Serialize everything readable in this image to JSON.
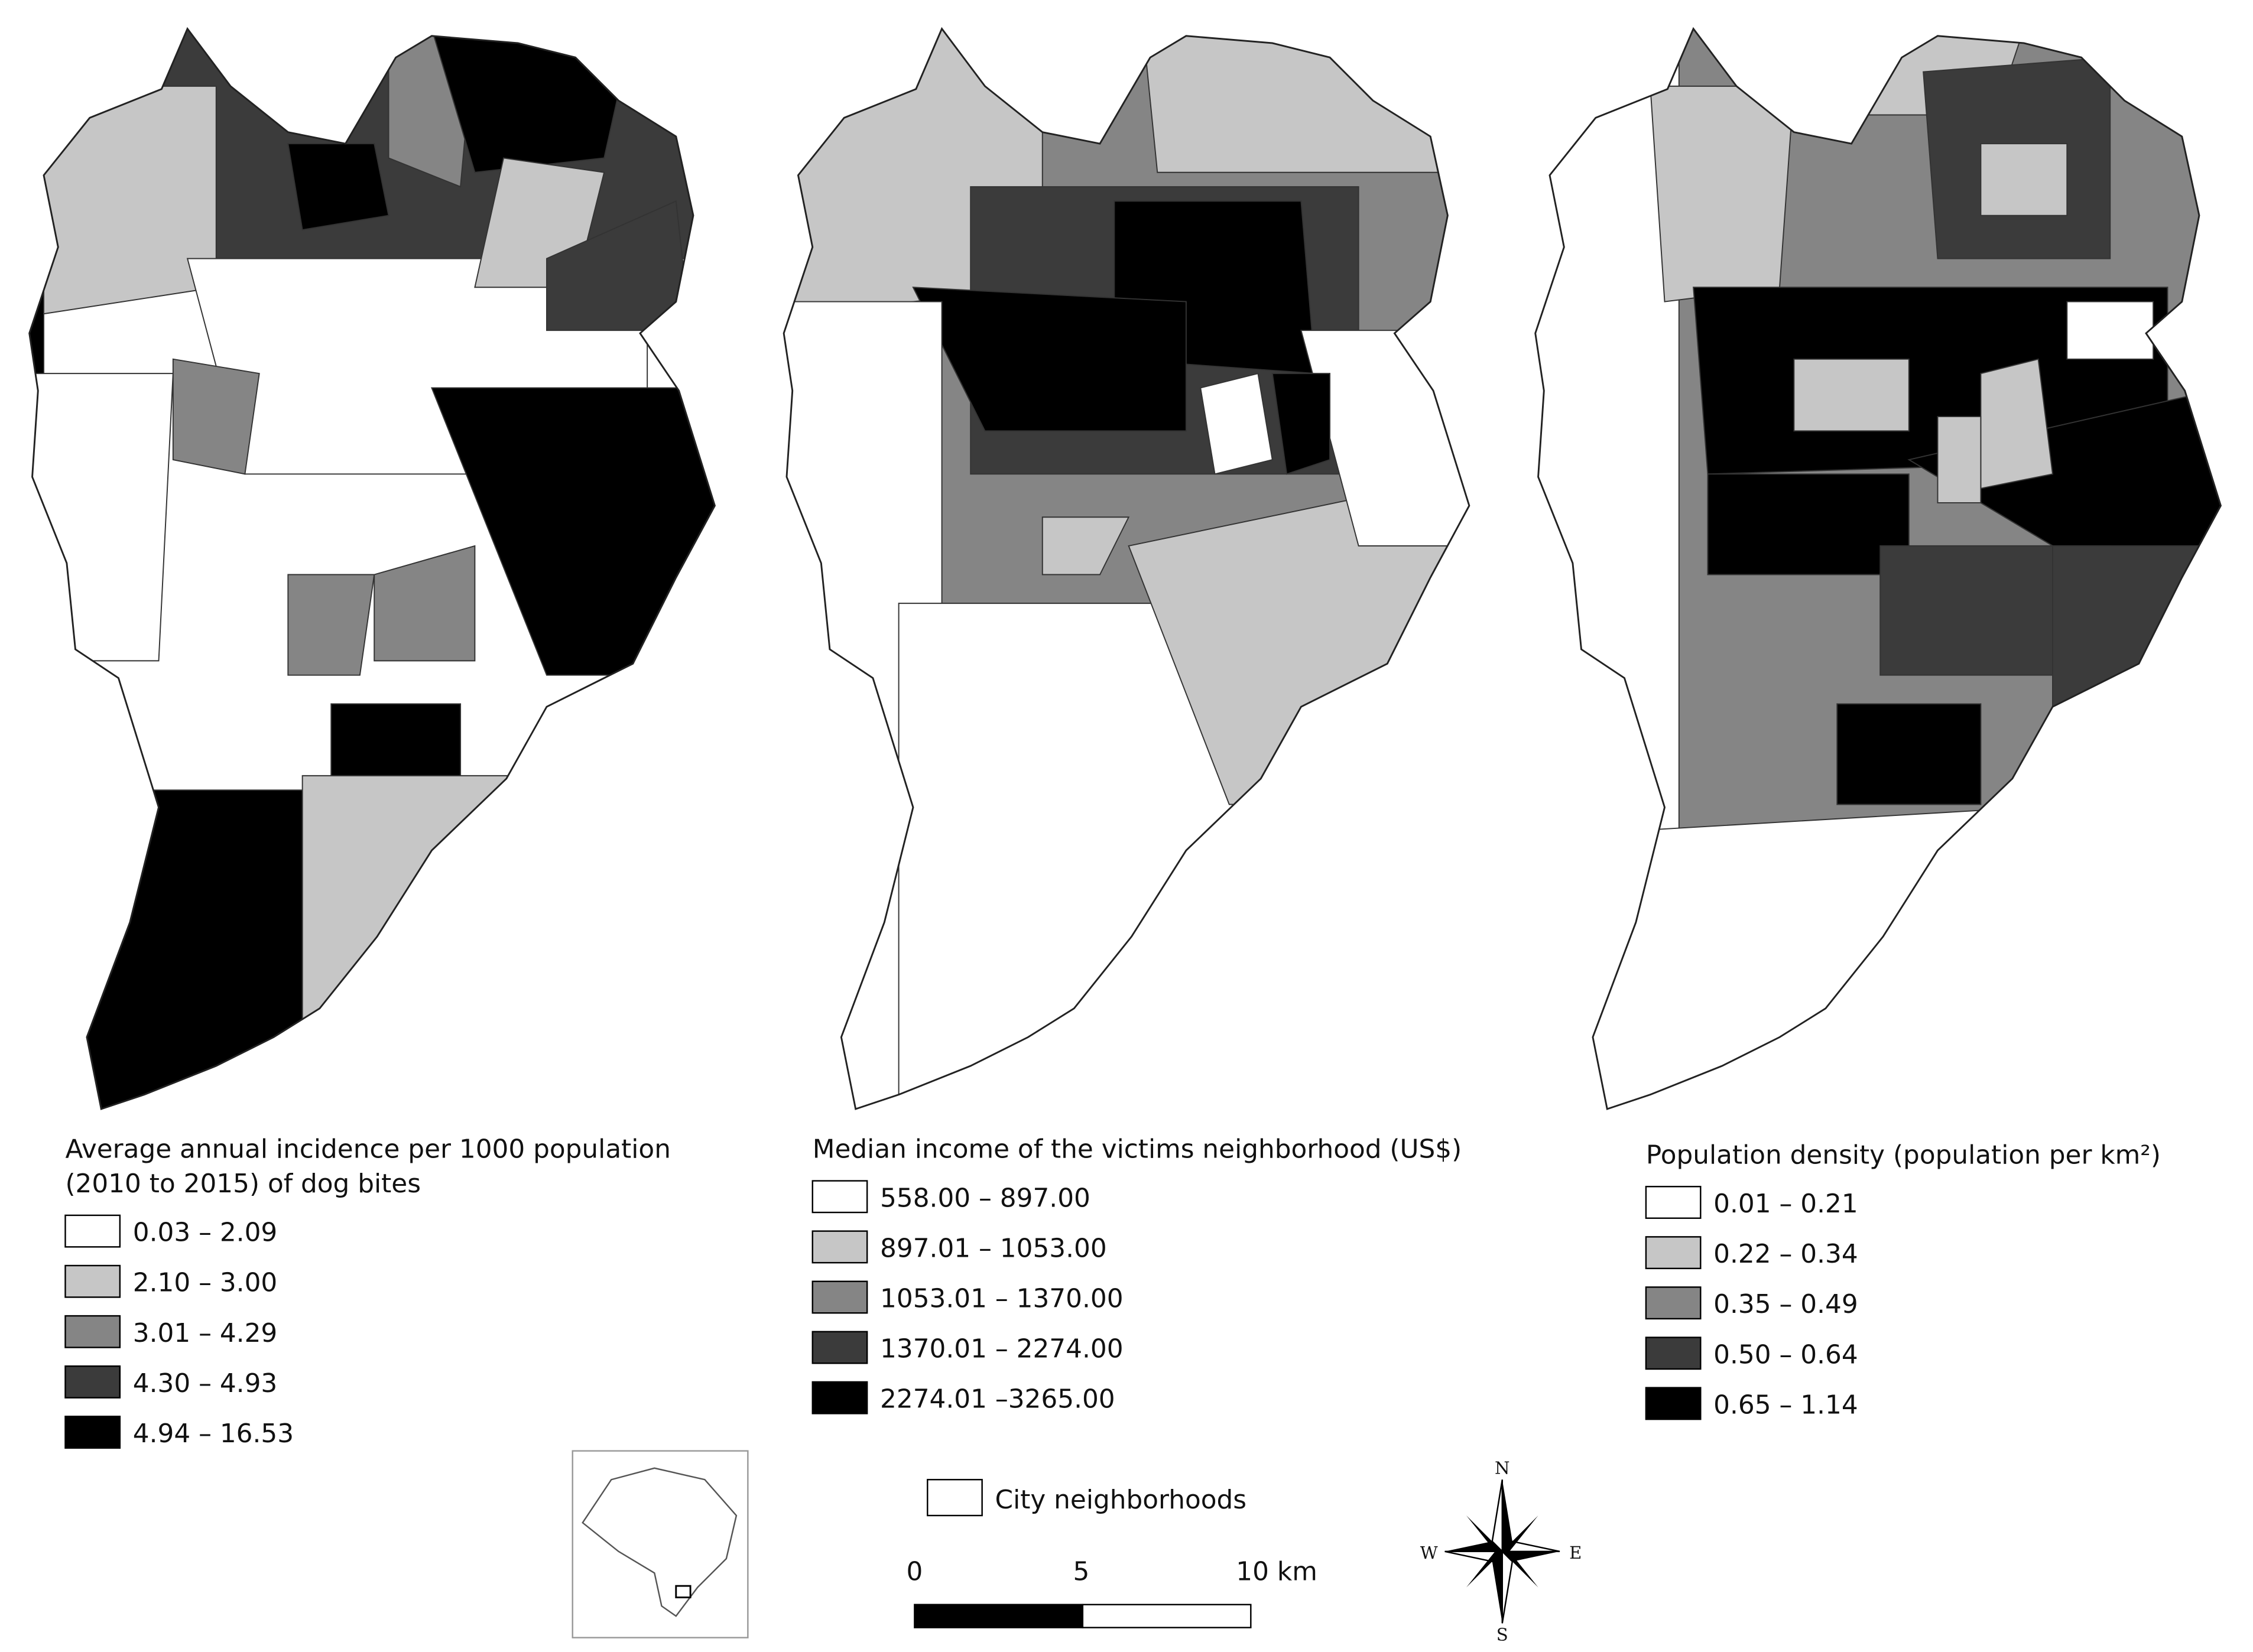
{
  "maps": [
    {
      "legend_title": [
        "Average annual incidence per 1000 population",
        " (2010 to 2015) of dog bites"
      ],
      "classes": [
        "0.03 – 2.09",
        "2.10 – 3.00",
        "3.01 – 4.29",
        "4.30 – 4.93",
        "4.94 – 16.53"
      ]
    },
    {
      "legend_title": [
        "Median income of the victims neighborhood (US$)"
      ],
      "classes": [
        "558.00 – 897.00",
        "897.01 – 1053.00",
        "1053.01 – 1370.00",
        "1370.01 – 2274.00",
        "2274.01 –3265.00"
      ]
    },
    {
      "legend_title": [
        "Population density (population per km²)"
      ],
      "classes": [
        "0.01 – 0.21",
        "0.22 – 0.34",
        "0.35 – 0.49",
        "0.50 – 0.64",
        "0.65 – 1.14"
      ]
    }
  ],
  "neighborhoods_label": "City neighborhoods",
  "scale_bar": {
    "labels": [
      "0",
      "5",
      "10 km"
    ]
  },
  "compass": {
    "n": "N",
    "e": "E",
    "s": "S",
    "w": "W"
  }
}
